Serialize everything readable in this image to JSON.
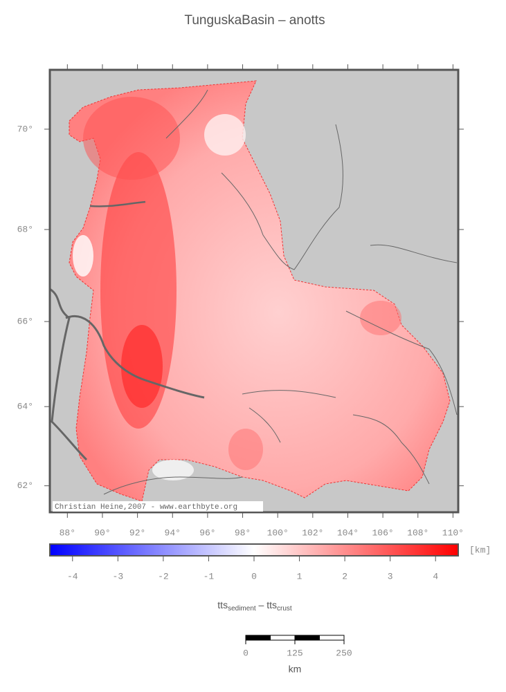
{
  "title": "TunguskaBasin – anotts",
  "map": {
    "xlim": [
      87,
      110.3
    ],
    "ylim": [
      61.3,
      71.1
    ],
    "xticks": [
      {
        "value": 88,
        "label": "88°"
      },
      {
        "value": 90,
        "label": "90°"
      },
      {
        "value": 92,
        "label": "92°"
      },
      {
        "value": 94,
        "label": "94°"
      },
      {
        "value": 96,
        "label": "96°"
      },
      {
        "value": 98,
        "label": "98°"
      },
      {
        "value": 100,
        "label": "100°"
      },
      {
        "value": 102,
        "label": "102°"
      },
      {
        "value": 104,
        "label": "104°"
      },
      {
        "value": 106,
        "label": "106°"
      },
      {
        "value": 108,
        "label": "108°"
      },
      {
        "value": 110,
        "label": "110°"
      }
    ],
    "yticks": [
      {
        "value": 62,
        "label": "62°"
      },
      {
        "value": 64,
        "label": "64°"
      },
      {
        "value": 66,
        "label": "66°"
      },
      {
        "value": 68,
        "label": "68°"
      },
      {
        "value": 70,
        "label": "70°"
      }
    ],
    "credit": "Christian Heine,2007 - www.earthbyte.org"
  },
  "colorbar": {
    "xlim": [
      -4.5,
      4.5
    ],
    "xticks": [
      -4,
      -3,
      -2,
      -1,
      0,
      1,
      2,
      3,
      4
    ],
    "unit": "[km]",
    "label": {
      "main1": "tts",
      "sub1": "sediment",
      "main2": " – tts",
      "sub2": "crust"
    }
  },
  "scalebar": {
    "xlim": [
      0,
      250
    ],
    "xticks": [
      0,
      125,
      250
    ],
    "unit": "km"
  }
}
